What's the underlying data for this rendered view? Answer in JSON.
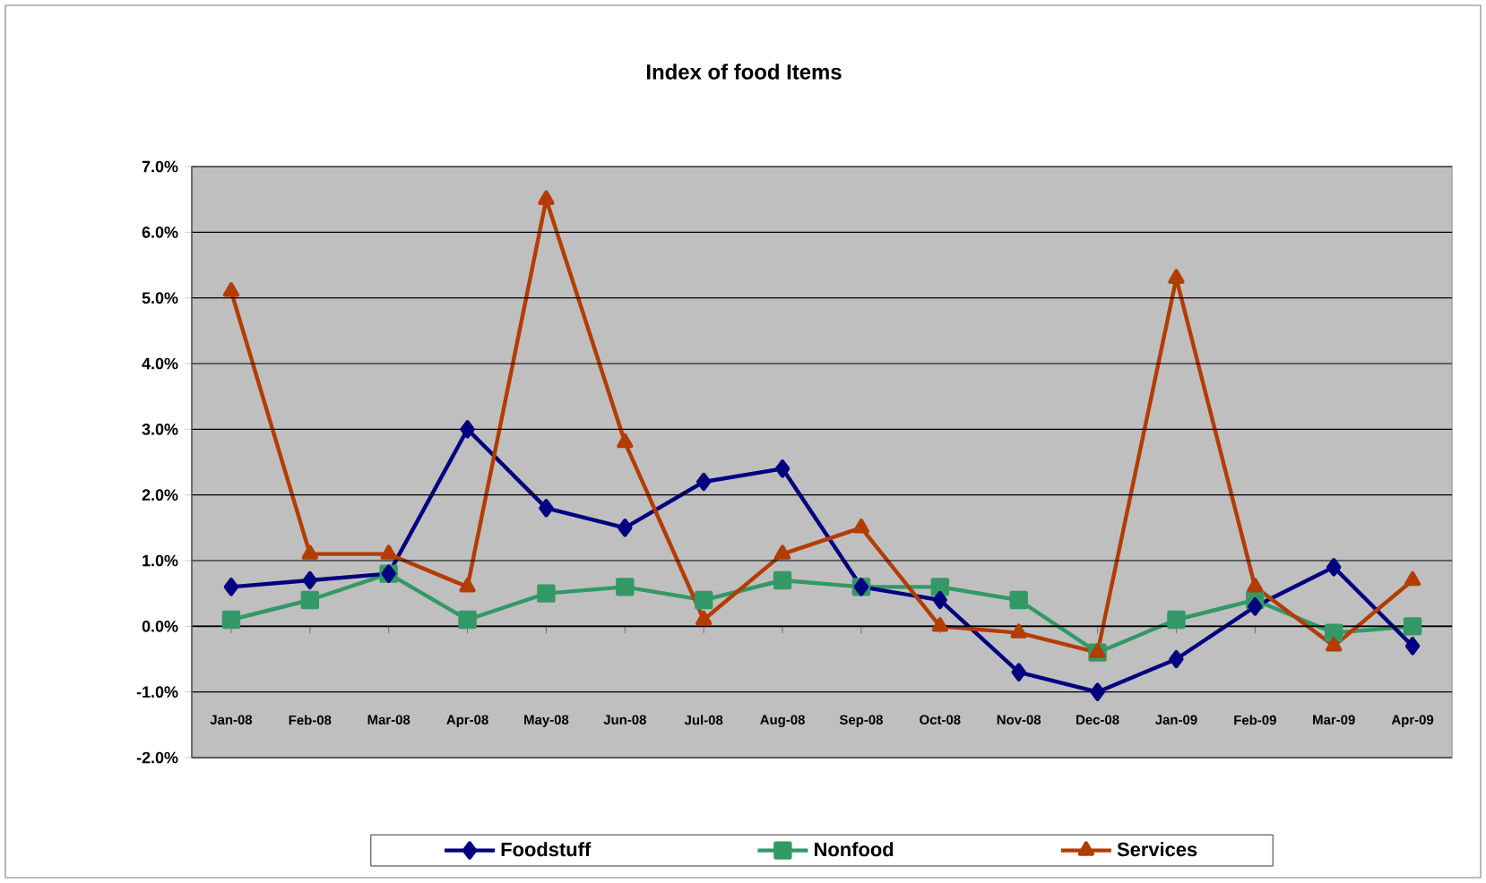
{
  "chart_data": {
    "type": "line",
    "title": "Index of food Items",
    "categories": [
      "Jan-08",
      "Feb-08",
      "Mar-08",
      "Apr-08",
      "May-08",
      "Jun-08",
      "Jul-08",
      "Aug-08",
      "Sep-08",
      "Oct-08",
      "Nov-08",
      "Dec-08",
      "Jan-09",
      "Feb-09",
      "Mar-09",
      "Apr-09"
    ],
    "series": [
      {
        "name": "Foodstuff",
        "color": "#000080",
        "marker": "diamond",
        "values": [
          0.6,
          0.7,
          0.8,
          3.0,
          1.8,
          1.5,
          2.2,
          2.4,
          0.6,
          0.4,
          -0.7,
          -1.0,
          -0.5,
          0.3,
          0.9,
          -0.3
        ]
      },
      {
        "name": "Nonfood",
        "color": "#339966",
        "marker": "square",
        "values": [
          0.1,
          0.4,
          0.8,
          0.1,
          0.5,
          0.6,
          0.4,
          0.7,
          0.6,
          0.6,
          0.4,
          -0.4,
          0.1,
          0.4,
          -0.1,
          0.0
        ]
      },
      {
        "name": "Services",
        "color": "#b33c00",
        "marker": "triangle",
        "values": [
          5.1,
          1.1,
          1.1,
          0.6,
          6.5,
          2.8,
          0.1,
          1.1,
          1.5,
          0.0,
          -0.1,
          -0.4,
          5.3,
          0.6,
          -0.3,
          0.7
        ]
      }
    ],
    "ylim": [
      -2,
      7
    ],
    "yticks": [
      {
        "value": -2,
        "label": "-2.0%"
      },
      {
        "value": -1,
        "label": "-1.0%"
      },
      {
        "value": 0,
        "label": "0.0%"
      },
      {
        "value": 1,
        "label": "1.0%"
      },
      {
        "value": 2,
        "label": "2.0%"
      },
      {
        "value": 3,
        "label": "3.0%"
      },
      {
        "value": 4,
        "label": "4.0%"
      },
      {
        "value": 5,
        "label": "5.0%"
      },
      {
        "value": 6,
        "label": "6.0%"
      },
      {
        "value": 7,
        "label": "7.0%"
      }
    ],
    "grid": "y",
    "legend": "bottom",
    "line_style": "solid"
  }
}
